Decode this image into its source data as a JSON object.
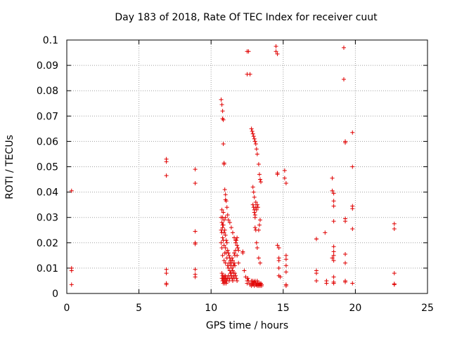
{
  "chart_data": {
    "type": "scatter",
    "title": "Day 183 of 2018, Rate Of TEC Index for receiver cuut",
    "xlabel": "GPS time / hours",
    "ylabel": "ROTI / TECUs",
    "xlim": [
      0,
      25
    ],
    "ylim": [
      0,
      0.1
    ],
    "x_ticks": [
      "0",
      "5",
      "10",
      "15",
      "20",
      "25"
    ],
    "y_ticks": [
      "0",
      "0.01",
      "0.02",
      "0.03",
      "0.04",
      "0.05",
      "0.06",
      "0.07",
      "0.08",
      "0.09",
      "0.1"
    ],
    "grid": true,
    "legend": "none",
    "marker": "+",
    "color": "#e00000",
    "series": [
      {
        "x": [
          0.33,
          0.33,
          0.33,
          0.33,
          6.9,
          6.9,
          6.9,
          6.9,
          6.9,
          6.9,
          6.9,
          8.9,
          8.9,
          8.9,
          8.9,
          8.9,
          8.9,
          8.9,
          8.9,
          10.7,
          10.7,
          10.75,
          10.75,
          10.8,
          10.8,
          10.8,
          10.85,
          10.85,
          10.9,
          10.9,
          10.9,
          10.95,
          10.95,
          11.0,
          11.0,
          11.0,
          11.05,
          11.05,
          11.1,
          11.1,
          11.15,
          11.15,
          11.2,
          11.2,
          11.25,
          11.25,
          11.3,
          11.3,
          11.35,
          11.35,
          11.4,
          11.4,
          11.45,
          11.45,
          11.5,
          11.5,
          11.55,
          11.55,
          11.6,
          11.6,
          11.65,
          11.65,
          11.7,
          11.7,
          11.75,
          11.8,
          11.8,
          11.85,
          11.9,
          10.75,
          10.75,
          10.8,
          10.8,
          10.85,
          10.85,
          10.9,
          10.9,
          10.95,
          10.95,
          11.0,
          11.0,
          11.05,
          11.05,
          11.1,
          11.15,
          11.2,
          11.25,
          11.3,
          11.35,
          11.4,
          11.45,
          11.5,
          11.55,
          11.6,
          11.65,
          11.7,
          11.75,
          11.8,
          10.7,
          10.75,
          10.8,
          10.8,
          10.85,
          10.85,
          10.9,
          10.9,
          10.95,
          11.0,
          11.0,
          11.05,
          11.1,
          11.15,
          11.2,
          11.3,
          11.4,
          11.5,
          11.6,
          11.7,
          11.8,
          11.9,
          10.7,
          10.75,
          10.75,
          10.8,
          10.8,
          10.85,
          10.9,
          11.0,
          12.2,
          12.2,
          12.3,
          12.4,
          12.5,
          12.5,
          12.55,
          12.6,
          12.7,
          12.7,
          12.8,
          12.8,
          12.85,
          12.9,
          12.9,
          12.95,
          13.0,
          13.0,
          13.05,
          13.1,
          13.1,
          13.15,
          13.2,
          13.2,
          13.25,
          13.3,
          13.3,
          13.35,
          13.4,
          13.4,
          13.45,
          13.5,
          13.5,
          12.6,
          12.7,
          12.8,
          12.85,
          12.9,
          12.95,
          13.0,
          13.05,
          13.1,
          13.15,
          13.2,
          13.3,
          13.35,
          13.4,
          13.45,
          12.9,
          12.95,
          13.0,
          13.0,
          13.05,
          13.05,
          13.1,
          13.1,
          13.15,
          13.2,
          13.25,
          13.3,
          13.35,
          13.4,
          12.9,
          12.95,
          13.0,
          13.05,
          13.1,
          13.15,
          13.2,
          13.3,
          13.4,
          12.5,
          12.5,
          14.5,
          14.5,
          14.6,
          14.6,
          14.6,
          14.6,
          14.7,
          14.7,
          14.7,
          14.7,
          14.7,
          14.8,
          15.1,
          15.1,
          15.2,
          15.2,
          15.2,
          15.2,
          15.2,
          15.2,
          15.2,
          17.3,
          17.3,
          17.3,
          17.3,
          17.3,
          17.9,
          18.0,
          18.0,
          18.4,
          18.4,
          18.5,
          18.5,
          18.5,
          18.5,
          18.5,
          18.5,
          18.5,
          18.4,
          18.5,
          18.5,
          18.5,
          18.5,
          19.2,
          19.2,
          19.3,
          19.3,
          19.3,
          19.3,
          19.3,
          19.3,
          19.3,
          19.3,
          19.8,
          19.8,
          19.8,
          19.8,
          19.8,
          19.8,
          22.7,
          22.7,
          22.7,
          22.7,
          22.7
        ],
        "y": [
          0.0405,
          0.01,
          0.009,
          0.0035,
          0.053,
          0.052,
          0.0465,
          0.0095,
          0.008,
          0.004,
          0.0035,
          0.049,
          0.0435,
          0.0245,
          0.02,
          0.0195,
          0.0095,
          0.0075,
          0.0065,
          0.025,
          0.02,
          0.024,
          0.018,
          0.026,
          0.022,
          0.015,
          0.027,
          0.021,
          0.024,
          0.019,
          0.013,
          0.025,
          0.016,
          0.023,
          0.018,
          0.012,
          0.021,
          0.016,
          0.02,
          0.014,
          0.017,
          0.011,
          0.016,
          0.01,
          0.015,
          0.012,
          0.014,
          0.009,
          0.013,
          0.011,
          0.012,
          0.008,
          0.014,
          0.01,
          0.013,
          0.009,
          0.011,
          0.008,
          0.016,
          0.012,
          0.015,
          0.011,
          0.02,
          0.017,
          0.021,
          0.015,
          0.022,
          0.018,
          0.012,
          0.008,
          0.006,
          0.007,
          0.005,
          0.006,
          0.004,
          0.007,
          0.005,
          0.006,
          0.004,
          0.005,
          0.007,
          0.006,
          0.004,
          0.005,
          0.006,
          0.007,
          0.005,
          0.006,
          0.008,
          0.007,
          0.006,
          0.005,
          0.007,
          0.006,
          0.008,
          0.007,
          0.006,
          0.005,
          0.0765,
          0.0745,
          0.072,
          0.069,
          0.0685,
          0.059,
          0.0515,
          0.051,
          0.041,
          0.039,
          0.037,
          0.0365,
          0.034,
          0.031,
          0.029,
          0.028,
          0.026,
          0.024,
          0.022,
          0.021,
          0.019,
          0.017,
          0.03,
          0.028,
          0.033,
          0.027,
          0.03,
          0.032,
          0.029,
          0.03,
          0.0165,
          0.016,
          0.009,
          0.0065,
          0.005,
          0.004,
          0.006,
          0.005,
          0.004,
          0.0035,
          0.005,
          0.003,
          0.004,
          0.005,
          0.0035,
          0.004,
          0.0045,
          0.003,
          0.005,
          0.0035,
          0.004,
          0.0035,
          0.005,
          0.003,
          0.004,
          0.0035,
          0.003,
          0.004,
          0.0035,
          0.003,
          0.004,
          0.003,
          0.0035,
          0.0955,
          0.0865,
          0.065,
          0.064,
          0.063,
          0.062,
          0.061,
          0.06,
          0.059,
          0.057,
          0.055,
          0.051,
          0.047,
          0.045,
          0.044,
          0.035,
          0.034,
          0.033,
          0.032,
          0.031,
          0.03,
          0.036,
          0.034,
          0.033,
          0.035,
          0.034,
          0.025,
          0.027,
          0.029,
          0.042,
          0.04,
          0.038,
          0.026,
          0.025,
          0.02,
          0.018,
          0.014,
          0.012,
          0.0865,
          0.0955,
          0.0975,
          0.0955,
          0.0945,
          0.0475,
          0.047,
          0.019,
          0.018,
          0.014,
          0.013,
          0.01,
          0.007,
          0.0065,
          0.0485,
          0.0455,
          0.0435,
          0.015,
          0.0135,
          0.011,
          0.0085,
          0.0035,
          0.003,
          0.0215,
          0.0215,
          0.009,
          0.008,
          0.005,
          0.024,
          0.005,
          0.004,
          0.0455,
          0.0405,
          0.0395,
          0.0365,
          0.0345,
          0.0285,
          0.0185,
          0.0165,
          0.015,
          0.014,
          0.013,
          0.0065,
          0.0045,
          0.004,
          0.097,
          0.0845,
          0.06,
          0.0595,
          0.0295,
          0.0285,
          0.0155,
          0.012,
          0.005,
          0.0045,
          0.0635,
          0.05,
          0.0345,
          0.0335,
          0.0255,
          0.004,
          0.0275,
          0.0255,
          0.008,
          0.0038,
          0.0035
        ]
      }
    ]
  }
}
